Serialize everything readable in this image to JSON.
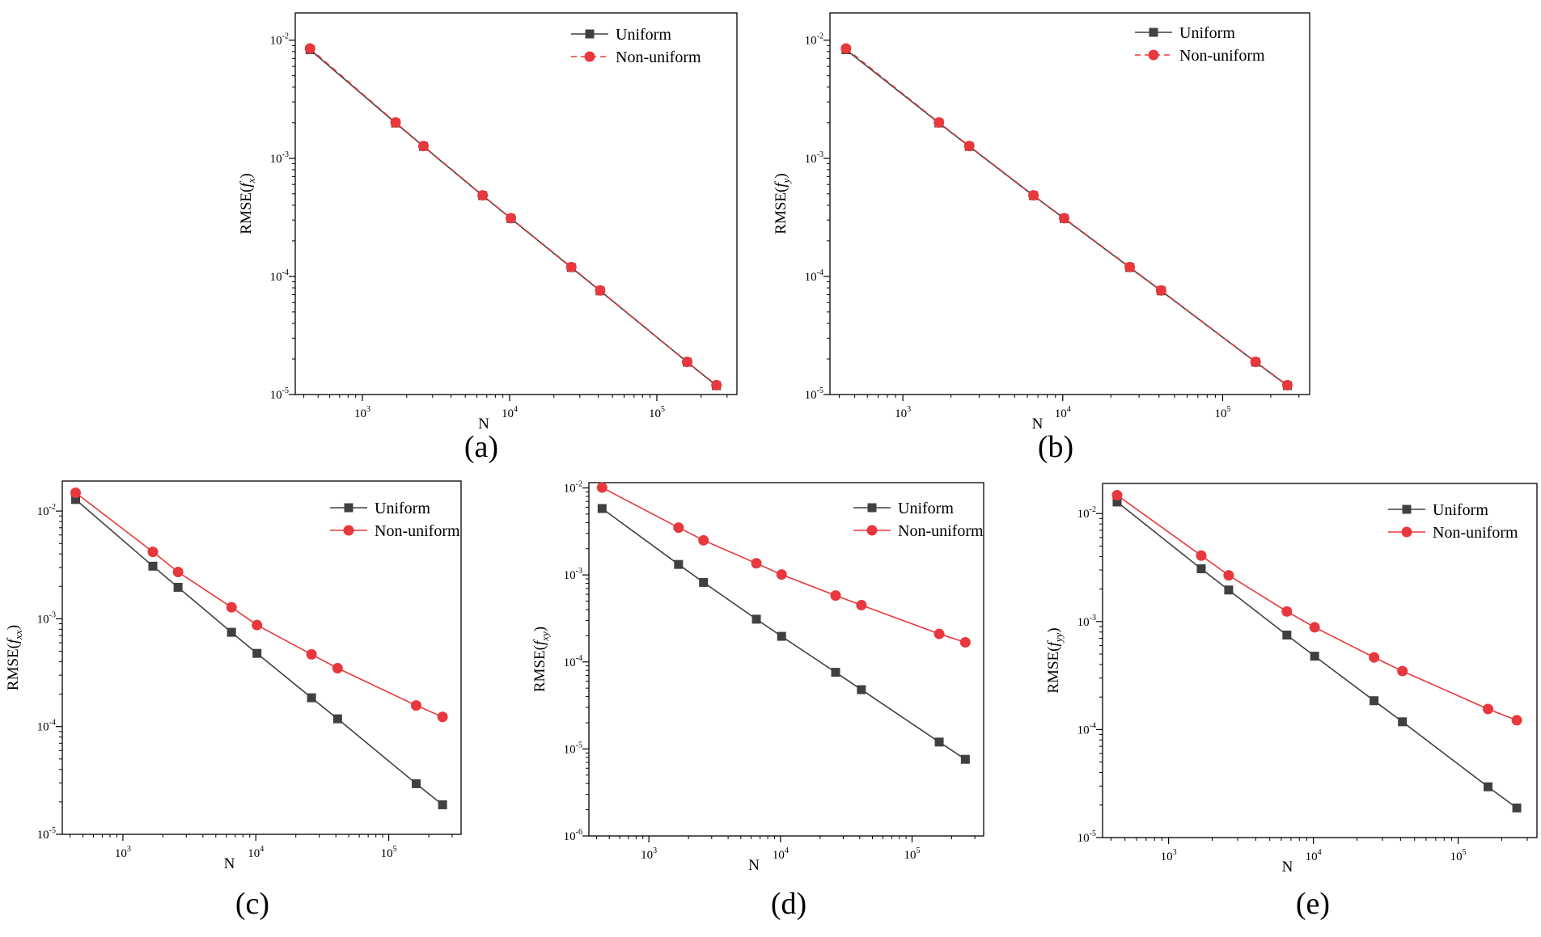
{
  "chart_data": [
    {
      "type": "line",
      "panel_label": "(a)",
      "xlabel": "N",
      "ylabel": {
        "prefix": "RMSE(",
        "italic": "f",
        "sub": "x",
        "suffix": ")"
      },
      "xscale": "log",
      "yscale": "log",
      "xlim": [
        350,
        350000
      ],
      "ylim": [
        1e-05,
        0.017
      ],
      "legend_position": "top-right",
      "x": [
        441,
        1681,
        2601,
        6561,
        10201,
        26244,
        41209,
        160801,
        254016
      ],
      "series": [
        {
          "name": "Uniform",
          "color": "#404040",
          "marker": "square",
          "line_style": "solid",
          "values": [
            0.0083,
            0.00199,
            0.00126,
            0.000483,
            0.000309,
            0.000119,
            7.55e-05,
            1.88e-05,
            1.19e-05
          ]
        },
        {
          "name": "Non-uniform",
          "color": "#e8383d",
          "marker": "circle",
          "line_style": "dashed",
          "values": [
            0.0085,
            0.00201,
            0.00127,
            0.000486,
            0.000311,
            0.00012,
            7.6e-05,
            1.89e-05,
            1.2e-05
          ]
        }
      ],
      "x_ticks": [
        {
          "base": "10",
          "exp": "3",
          "value": 1000
        },
        {
          "base": "10",
          "exp": "4",
          "value": 10000
        },
        {
          "base": "10",
          "exp": "5",
          "value": 100000
        }
      ],
      "y_ticks": [
        {
          "base": "10",
          "exp": "-5",
          "value": 1e-05
        },
        {
          "base": "10",
          "exp": "-4",
          "value": 0.0001
        },
        {
          "base": "10",
          "exp": "-3",
          "value": 0.001
        },
        {
          "base": "10",
          "exp": "-2",
          "value": 0.01
        }
      ]
    },
    {
      "type": "line",
      "panel_label": "(b)",
      "xlabel": "N",
      "ylabel": {
        "prefix": "RMSE(",
        "italic": "f",
        "sub": "y",
        "suffix": ")"
      },
      "xscale": "log",
      "yscale": "log",
      "xlim": [
        350,
        350000
      ],
      "ylim": [
        1e-05,
        0.017
      ],
      "legend_position": "top-right",
      "x": [
        441,
        1681,
        2601,
        6561,
        10201,
        26244,
        41209,
        160801,
        254016
      ],
      "series": [
        {
          "name": "Uniform",
          "color": "#404040",
          "marker": "square",
          "line_style": "solid",
          "values": [
            0.0083,
            0.00199,
            0.00126,
            0.000483,
            0.000309,
            0.000119,
            7.55e-05,
            1.88e-05,
            1.19e-05
          ]
        },
        {
          "name": "Non-uniform",
          "color": "#e8383d",
          "marker": "circle",
          "line_style": "dashed",
          "values": [
            0.0085,
            0.00201,
            0.00127,
            0.000486,
            0.000311,
            0.00012,
            7.6e-05,
            1.89e-05,
            1.2e-05
          ]
        }
      ],
      "x_ticks": [
        {
          "base": "10",
          "exp": "3",
          "value": 1000
        },
        {
          "base": "10",
          "exp": "4",
          "value": 10000
        },
        {
          "base": "10",
          "exp": "5",
          "value": 100000
        }
      ],
      "y_ticks": [
        {
          "base": "10",
          "exp": "-5",
          "value": 1e-05
        },
        {
          "base": "10",
          "exp": "-4",
          "value": 0.0001
        },
        {
          "base": "10",
          "exp": "-3",
          "value": 0.001
        },
        {
          "base": "10",
          "exp": "-2",
          "value": 0.01
        }
      ]
    },
    {
      "type": "line",
      "panel_label": "(c)",
      "xlabel": "N",
      "ylabel": {
        "prefix": "RMSE(",
        "italic": "f",
        "sub": "xx",
        "suffix": ")"
      },
      "xscale": "log",
      "yscale": "log",
      "xlim": [
        350,
        350000
      ],
      "ylim": [
        1e-05,
        0.019
      ],
      "legend_position": "top-right",
      "x": [
        441,
        1681,
        2601,
        6561,
        10201,
        26244,
        41209,
        160801,
        254016
      ],
      "series": [
        {
          "name": "Uniform",
          "color": "#404040",
          "marker": "square",
          "line_style": "solid",
          "values": [
            0.0128,
            0.00308,
            0.00196,
            0.00075,
            0.000478,
            0.000185,
            0.000118,
            2.95e-05,
            1.88e-05
          ]
        },
        {
          "name": "Non-uniform",
          "color": "#e8383d",
          "marker": "circle",
          "line_style": "solid",
          "values": [
            0.0148,
            0.00418,
            0.00272,
            0.00128,
            0.000875,
            0.000468,
            0.000348,
            0.000157,
            0.000123
          ]
        }
      ],
      "x_ticks": [
        {
          "base": "10",
          "exp": "3",
          "value": 1000
        },
        {
          "base": "10",
          "exp": "4",
          "value": 10000
        },
        {
          "base": "10",
          "exp": "5",
          "value": 100000
        }
      ],
      "y_ticks": [
        {
          "base": "10",
          "exp": "-5",
          "value": 1e-05
        },
        {
          "base": "10",
          "exp": "-4",
          "value": 0.0001
        },
        {
          "base": "10",
          "exp": "-3",
          "value": 0.001
        },
        {
          "base": "10",
          "exp": "-2",
          "value": 0.01
        }
      ]
    },
    {
      "type": "line",
      "panel_label": "(d)",
      "xlabel": "N",
      "ylabel": {
        "prefix": "RMSE(",
        "italic": "f",
        "sub": "xy",
        "suffix": ")"
      },
      "xscale": "log",
      "yscale": "log",
      "xlim": [
        350,
        350000
      ],
      "ylim": [
        1e-06,
        0.0115
      ],
      "legend_position": "top-right",
      "x": [
        441,
        1681,
        2601,
        6561,
        10201,
        26244,
        41209,
        160801,
        254016
      ],
      "series": [
        {
          "name": "Uniform",
          "color": "#404040",
          "marker": "square",
          "line_style": "solid",
          "values": [
            0.0058,
            0.00132,
            0.00082,
            0.00031,
            0.000197,
            7.6e-05,
            4.8e-05,
            1.2e-05,
            7.6e-06
          ]
        },
        {
          "name": "Non-uniform",
          "color": "#e8383d",
          "marker": "circle",
          "line_style": "solid",
          "values": [
            0.0101,
            0.0035,
            0.0025,
            0.00136,
            0.00101,
            0.00058,
            0.00045,
            0.00021,
            0.000168
          ]
        }
      ],
      "x_ticks": [
        {
          "base": "10",
          "exp": "3",
          "value": 1000
        },
        {
          "base": "10",
          "exp": "4",
          "value": 10000
        },
        {
          "base": "10",
          "exp": "5",
          "value": 100000
        }
      ],
      "y_ticks": [
        {
          "base": "10",
          "exp": "-6",
          "value": 1e-06
        },
        {
          "base": "10",
          "exp": "-5",
          "value": 1e-05
        },
        {
          "base": "10",
          "exp": "-4",
          "value": 0.0001
        },
        {
          "base": "10",
          "exp": "-3",
          "value": 0.001
        },
        {
          "base": "10",
          "exp": "-2",
          "value": 0.01
        }
      ]
    },
    {
      "type": "line",
      "panel_label": "(e)",
      "xlabel": "N",
      "ylabel": {
        "prefix": "RMSE(",
        "italic": "f",
        "sub": "yy",
        "suffix": ")"
      },
      "xscale": "log",
      "yscale": "log",
      "xlim": [
        350,
        350000
      ],
      "ylim": [
        1e-05,
        0.019
      ],
      "legend_position": "top-right",
      "x": [
        441,
        1681,
        2601,
        6561,
        10201,
        26244,
        41209,
        160801,
        254016
      ],
      "series": [
        {
          "name": "Uniform",
          "color": "#404040",
          "marker": "square",
          "line_style": "solid",
          "values": [
            0.0128,
            0.00308,
            0.00196,
            0.00075,
            0.000478,
            0.000185,
            0.000118,
            2.95e-05,
            1.88e-05
          ]
        },
        {
          "name": "Non-uniform",
          "color": "#e8383d",
          "marker": "circle",
          "line_style": "solid",
          "values": [
            0.0148,
            0.00408,
            0.00268,
            0.00124,
            0.000885,
            0.000466,
            0.000348,
            0.000155,
            0.000122
          ]
        }
      ],
      "x_ticks": [
        {
          "base": "10",
          "exp": "3",
          "value": 1000
        },
        {
          "base": "10",
          "exp": "4",
          "value": 10000
        },
        {
          "base": "10",
          "exp": "5",
          "value": 100000
        }
      ],
      "y_ticks": [
        {
          "base": "10",
          "exp": "-5",
          "value": 1e-05
        },
        {
          "base": "10",
          "exp": "-4",
          "value": 0.0001
        },
        {
          "base": "10",
          "exp": "-3",
          "value": 0.001
        },
        {
          "base": "10",
          "exp": "-2",
          "value": 0.01
        }
      ]
    }
  ]
}
